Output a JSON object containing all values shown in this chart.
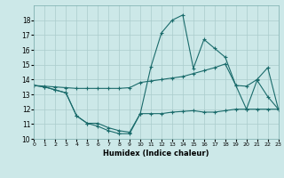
{
  "xlabel": "Humidex (Indice chaleur)",
  "bg_color": "#cce8e8",
  "grid_color": "#aacccc",
  "line_color": "#1a6b6b",
  "xlim": [
    0,
    23
  ],
  "ylim": [
    10,
    19
  ],
  "xticks": [
    0,
    1,
    2,
    3,
    4,
    5,
    6,
    7,
    8,
    9,
    10,
    11,
    12,
    13,
    14,
    15,
    16,
    17,
    18,
    19,
    20,
    21,
    22,
    23
  ],
  "yticks": [
    10,
    11,
    12,
    13,
    14,
    15,
    16,
    17,
    18
  ],
  "line1_x": [
    0,
    1,
    2,
    3,
    4,
    5,
    6,
    7,
    8,
    9,
    10,
    11,
    12,
    13,
    14,
    15,
    16,
    17,
    18,
    19,
    20,
    21,
    22,
    23
  ],
  "line1_y": [
    13.6,
    13.55,
    13.5,
    13.45,
    13.4,
    13.4,
    13.4,
    13.4,
    13.4,
    13.45,
    13.8,
    13.9,
    14.0,
    14.1,
    14.2,
    14.4,
    14.6,
    14.8,
    15.05,
    13.6,
    13.55,
    14.0,
    14.8,
    12.0
  ],
  "line2_x": [
    0,
    1,
    2,
    3,
    4,
    5,
    6,
    7,
    8,
    9,
    10,
    11,
    12,
    13,
    14,
    15,
    16,
    17,
    18,
    19,
    20,
    21,
    22,
    23
  ],
  "line2_y": [
    13.6,
    13.5,
    13.3,
    13.1,
    11.55,
    11.05,
    11.05,
    10.75,
    10.55,
    10.45,
    11.7,
    11.7,
    11.7,
    11.8,
    11.85,
    11.9,
    11.8,
    11.8,
    11.9,
    12.0,
    12.0,
    12.0,
    12.0,
    12.0
  ],
  "line3_x": [
    0,
    1,
    2,
    3,
    4,
    5,
    6,
    7,
    8,
    9,
    10,
    11,
    12,
    13,
    14,
    15,
    16,
    17,
    18,
    19,
    20,
    21,
    22,
    23
  ],
  "line3_y": [
    13.6,
    13.5,
    13.3,
    13.1,
    11.55,
    11.05,
    10.85,
    10.55,
    10.35,
    10.35,
    11.7,
    14.85,
    17.15,
    18.0,
    18.35,
    14.75,
    16.7,
    16.1,
    15.5,
    13.6,
    12.0,
    13.95,
    12.85,
    12.0
  ]
}
